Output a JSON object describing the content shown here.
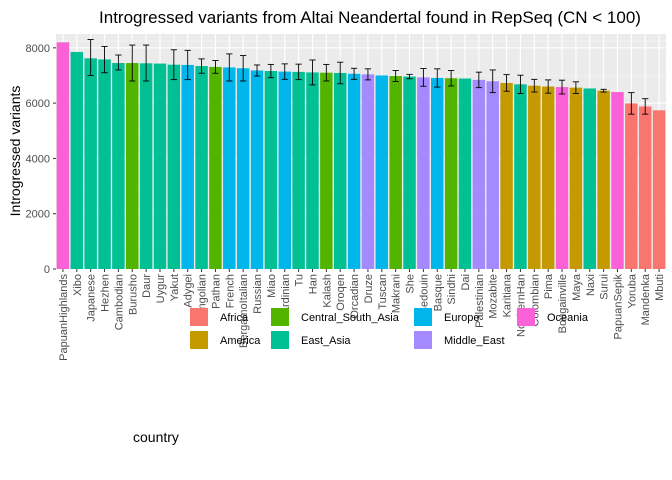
{
  "chart_data": {
    "type": "bar",
    "title": "Introgressed variants from Altai Neandertal found in RepSeq (CN < 100)",
    "xlabel": "",
    "ylabel": "Introgressed variants",
    "ylim": [
      0,
      8500
    ],
    "yticks": [
      0,
      2000,
      4000,
      6000,
      8000
    ],
    "grid": true,
    "legend": {
      "title": "country",
      "position": "bottom",
      "entries": [
        "Africa",
        "America",
        "Central_South_Asia",
        "East_Asia",
        "Europe",
        "Middle_East",
        "Oceania"
      ]
    },
    "group_colors": {
      "Africa": "#F8766D",
      "America": "#C49A00",
      "Central_South_Asia": "#53B400",
      "East_Asia": "#00C094",
      "Europe": "#00B6EB",
      "Middle_East": "#A58AFF",
      "Oceania": "#FB61D7"
    },
    "categories": [
      "PapuanHighlands",
      "Xibo",
      "Japanese",
      "Hezhen",
      "Cambodian",
      "Burusho",
      "Daur",
      "Uygur",
      "Yakut",
      "Adygei",
      "Mongolian",
      "Pathan",
      "French",
      "BergamoItalian",
      "Russian",
      "Miao",
      "Sardinian",
      "Tu",
      "Han",
      "Kalash",
      "Oroqen",
      "Orcadian",
      "Druze",
      "Tuscan",
      "Makrani",
      "She",
      "Bedouin",
      "Basque",
      "Sindhi",
      "Dai",
      "Palestinian",
      "Mozabite",
      "Karitiana",
      "NorthernHan",
      "Colombian",
      "Pima",
      "Bougainville",
      "Maya",
      "Naxi",
      "Surui",
      "PapuanSepik",
      "Yoruba",
      "Mandenka",
      "Mbuti"
    ],
    "groups": [
      "Oceania",
      "East_Asia",
      "East_Asia",
      "East_Asia",
      "East_Asia",
      "Central_South_Asia",
      "East_Asia",
      "East_Asia",
      "East_Asia",
      "Europe",
      "East_Asia",
      "Central_South_Asia",
      "Europe",
      "Europe",
      "Europe",
      "East_Asia",
      "Europe",
      "East_Asia",
      "East_Asia",
      "Central_South_Asia",
      "East_Asia",
      "Europe",
      "Middle_East",
      "Europe",
      "Central_South_Asia",
      "East_Asia",
      "Middle_East",
      "Europe",
      "Central_South_Asia",
      "East_Asia",
      "Middle_East",
      "Middle_East",
      "America",
      "East_Asia",
      "America",
      "America",
      "Oceania",
      "America",
      "East_Asia",
      "America",
      "Oceania",
      "Africa",
      "Africa",
      "Africa"
    ],
    "values": [
      8200,
      7850,
      7620,
      7580,
      7450,
      7450,
      7440,
      7430,
      7390,
      7380,
      7340,
      7310,
      7290,
      7260,
      7180,
      7160,
      7140,
      7130,
      7110,
      7100,
      7090,
      7060,
      7040,
      7000,
      6980,
      6960,
      6930,
      6910,
      6900,
      6890,
      6840,
      6790,
      6730,
      6680,
      6630,
      6600,
      6580,
      6560,
      6530,
      6450,
      6400,
      5990,
      5880,
      5740
    ],
    "error_low": [
      null,
      null,
      7000,
      7100,
      7200,
      6800,
      6800,
      null,
      6850,
      6850,
      7080,
      7080,
      6800,
      6800,
      6980,
      6920,
      6860,
      6850,
      6660,
      6800,
      6700,
      6860,
      6840,
      null,
      6780,
      6880,
      6610,
      6580,
      6620,
      null,
      6560,
      6380,
      6430,
      6350,
      6400,
      6360,
      6330,
      6350,
      null,
      6400,
      null,
      5600,
      5600,
      null
    ],
    "error_high": [
      null,
      null,
      8300,
      8050,
      7740,
      8100,
      8100,
      null,
      7930,
      7910,
      7600,
      7540,
      7780,
      7720,
      7380,
      7400,
      7420,
      7410,
      7560,
      7400,
      7480,
      7260,
      7240,
      null,
      7180,
      7040,
      7250,
      7240,
      7180,
      null,
      7120,
      7200,
      7030,
      7010,
      6860,
      6840,
      6830,
      6770,
      null,
      6500,
      null,
      6380,
      6160,
      null
    ]
  }
}
